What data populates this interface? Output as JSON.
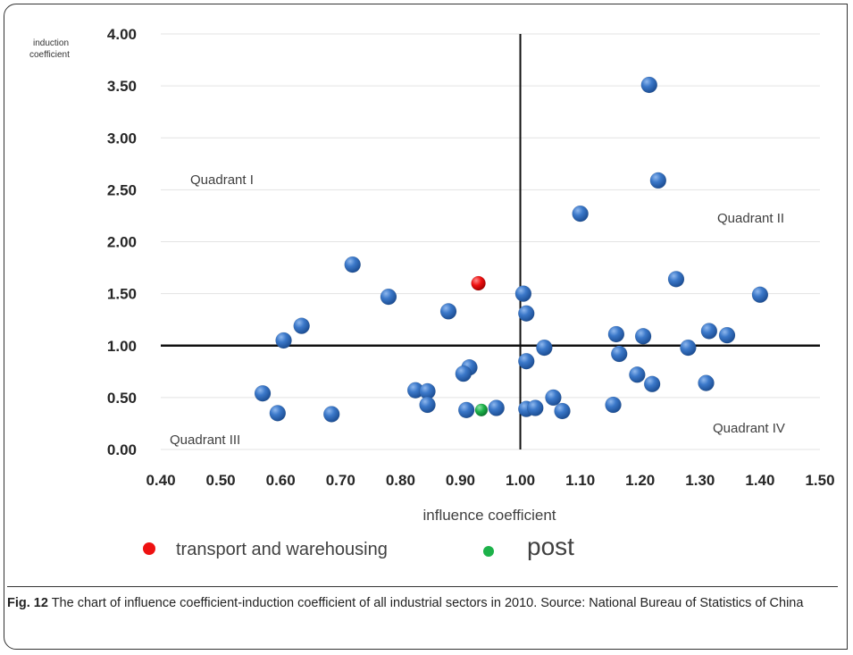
{
  "chart_data": {
    "type": "scatter",
    "xlabel": "influence coefficient",
    "ylabel": "induction coefficient",
    "xlim": [
      0.4,
      1.5
    ],
    "ylim": [
      0.0,
      4.0
    ],
    "x_ticks": [
      "0.40",
      "0.50",
      "0.60",
      "0.70",
      "0.80",
      "0.90",
      "1.00",
      "1.10",
      "1.20",
      "1.30",
      "1.40",
      "1.50"
    ],
    "y_ticks": [
      "0.00",
      "0.50",
      "1.00",
      "1.50",
      "2.00",
      "2.50",
      "3.00",
      "3.50",
      "4.00"
    ],
    "reference_lines": {
      "x": 1.0,
      "y": 1.0
    },
    "quadrant_labels": [
      "Quadrant I",
      "Quadrant II",
      "Quadrant III",
      "Quadrant IV"
    ],
    "series": [
      {
        "color": "#2e6ebd",
        "points": [
          {
            "x": 1.215,
            "y": 3.51
          },
          {
            "x": 1.23,
            "y": 2.59
          },
          {
            "x": 1.1,
            "y": 2.27
          },
          {
            "x": 1.26,
            "y": 1.64
          },
          {
            "x": 1.4,
            "y": 1.49
          },
          {
            "x": 0.72,
            "y": 1.78
          },
          {
            "x": 0.78,
            "y": 1.47
          },
          {
            "x": 0.88,
            "y": 1.33
          },
          {
            "x": 1.005,
            "y": 1.5
          },
          {
            "x": 1.01,
            "y": 1.31
          },
          {
            "x": 0.635,
            "y": 1.19
          },
          {
            "x": 0.605,
            "y": 1.05
          },
          {
            "x": 1.04,
            "y": 0.98
          },
          {
            "x": 1.16,
            "y": 1.11
          },
          {
            "x": 1.205,
            "y": 1.09
          },
          {
            "x": 1.315,
            "y": 1.14
          },
          {
            "x": 1.345,
            "y": 1.1
          },
          {
            "x": 1.28,
            "y": 0.98
          },
          {
            "x": 1.165,
            "y": 0.92
          },
          {
            "x": 1.01,
            "y": 0.85
          },
          {
            "x": 0.915,
            "y": 0.79
          },
          {
            "x": 0.905,
            "y": 0.73
          },
          {
            "x": 1.195,
            "y": 0.72
          },
          {
            "x": 1.22,
            "y": 0.63
          },
          {
            "x": 1.31,
            "y": 0.64
          },
          {
            "x": 0.825,
            "y": 0.57
          },
          {
            "x": 0.845,
            "y": 0.56
          },
          {
            "x": 0.57,
            "y": 0.54
          },
          {
            "x": 1.055,
            "y": 0.5
          },
          {
            "x": 0.845,
            "y": 0.43
          },
          {
            "x": 1.155,
            "y": 0.43
          },
          {
            "x": 0.595,
            "y": 0.35
          },
          {
            "x": 0.685,
            "y": 0.34
          },
          {
            "x": 0.91,
            "y": 0.38
          },
          {
            "x": 0.96,
            "y": 0.4
          },
          {
            "x": 1.01,
            "y": 0.39
          },
          {
            "x": 1.025,
            "y": 0.4
          },
          {
            "x": 1.07,
            "y": 0.37
          }
        ]
      },
      {
        "name": "transport and warehousing",
        "color": "#ee1111",
        "points": [
          {
            "x": 0.93,
            "y": 1.6
          }
        ]
      },
      {
        "name": "post",
        "color": "#1db24a",
        "points": [
          {
            "x": 0.935,
            "y": 0.38
          }
        ]
      }
    ]
  },
  "caption": {
    "label": "Fig. 12",
    "text": " The chart of influence coefficient-induction coefficient of all industrial sectors in 2010. Source: National Bureau of Statistics of China"
  }
}
